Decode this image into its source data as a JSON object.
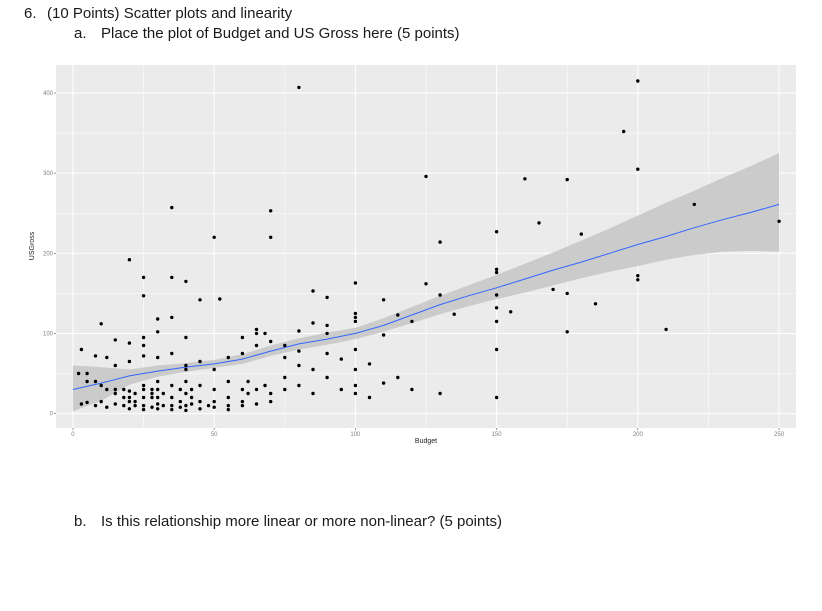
{
  "question": {
    "number": "6.",
    "title": "(10 Points) Scatter plots and linearity",
    "part_a": {
      "marker": "a.",
      "text": "Place the plot of Budget and US Gross here (5 points)"
    },
    "part_b": {
      "marker": "b.",
      "text": "Is this relationship more linear or more non-linear? (5 points)"
    }
  },
  "chart_data": {
    "type": "scatter",
    "xlabel": "Budget",
    "ylabel": "USGross",
    "xlim": [
      -6,
      256
    ],
    "ylim": [
      -18,
      435
    ],
    "x_ticks": [
      0,
      50,
      100,
      150,
      200,
      250
    ],
    "y_ticks": [
      0,
      100,
      200,
      300,
      400
    ],
    "grid": true,
    "colors": {
      "panel": "#ebebeb",
      "grid": "#ffffff",
      "points": "#000000",
      "smooth": "#3366ff",
      "band": "#c8c8c8"
    },
    "points": [
      [
        80,
        407
      ],
      [
        200,
        415
      ],
      [
        195,
        352
      ],
      [
        200,
        305
      ],
      [
        220,
        261
      ],
      [
        250,
        240
      ],
      [
        125,
        296
      ],
      [
        160,
        293
      ],
      [
        175,
        292
      ],
      [
        35,
        257
      ],
      [
        70,
        253
      ],
      [
        50,
        220
      ],
      [
        70,
        220
      ],
      [
        130,
        214
      ],
      [
        165,
        238
      ],
      [
        180,
        224
      ],
      [
        150,
        227
      ],
      [
        150,
        180
      ],
      [
        150,
        176
      ],
      [
        200,
        172
      ],
      [
        200,
        167
      ],
      [
        20,
        192
      ],
      [
        25,
        170
      ],
      [
        35,
        170
      ],
      [
        40,
        165
      ],
      [
        25,
        147
      ],
      [
        45,
        142
      ],
      [
        52,
        143
      ],
      [
        85,
        153
      ],
      [
        90,
        145
      ],
      [
        100,
        163
      ],
      [
        110,
        142
      ],
      [
        125,
        162
      ],
      [
        130,
        148
      ],
      [
        135,
        124
      ],
      [
        150,
        148
      ],
      [
        150,
        132
      ],
      [
        150,
        115
      ],
      [
        155,
        127
      ],
      [
        170,
        155
      ],
      [
        175,
        150
      ],
      [
        185,
        137
      ],
      [
        210,
        105
      ],
      [
        175,
        102
      ],
      [
        30,
        118
      ],
      [
        35,
        120
      ],
      [
        10,
        112
      ],
      [
        15,
        92
      ],
      [
        20,
        88
      ],
      [
        25,
        95
      ],
      [
        30,
        102
      ],
      [
        40,
        95
      ],
      [
        60,
        95
      ],
      [
        65,
        100
      ],
      [
        65,
        105
      ],
      [
        68,
        100
      ],
      [
        75,
        85
      ],
      [
        80,
        78
      ],
      [
        80,
        103
      ],
      [
        85,
        113
      ],
      [
        90,
        110
      ],
      [
        90,
        100
      ],
      [
        100,
        125
      ],
      [
        100,
        120
      ],
      [
        100,
        115
      ],
      [
        110,
        98
      ],
      [
        115,
        123
      ],
      [
        120,
        115
      ],
      [
        150,
        80
      ],
      [
        3,
        80
      ],
      [
        8,
        72
      ],
      [
        12,
        70
      ],
      [
        15,
        60
      ],
      [
        20,
        65
      ],
      [
        25,
        85
      ],
      [
        25,
        72
      ],
      [
        30,
        70
      ],
      [
        35,
        75
      ],
      [
        40,
        60
      ],
      [
        40,
        55
      ],
      [
        45,
        65
      ],
      [
        50,
        55
      ],
      [
        55,
        70
      ],
      [
        60,
        75
      ],
      [
        65,
        85
      ],
      [
        70,
        90
      ],
      [
        75,
        70
      ],
      [
        80,
        60
      ],
      [
        85,
        55
      ],
      [
        90,
        75
      ],
      [
        95,
        68
      ],
      [
        100,
        80
      ],
      [
        100,
        55
      ],
      [
        105,
        62
      ],
      [
        115,
        45
      ],
      [
        120,
        30
      ],
      [
        130,
        25
      ],
      [
        150,
        20
      ],
      [
        2,
        50
      ],
      [
        5,
        50
      ],
      [
        5,
        40
      ],
      [
        8,
        40
      ],
      [
        10,
        35
      ],
      [
        12,
        30
      ],
      [
        15,
        30
      ],
      [
        15,
        25
      ],
      [
        18,
        30
      ],
      [
        18,
        20
      ],
      [
        20,
        28
      ],
      [
        20,
        20
      ],
      [
        20,
        15
      ],
      [
        22,
        25
      ],
      [
        22,
        15
      ],
      [
        25,
        35
      ],
      [
        25,
        30
      ],
      [
        25,
        20
      ],
      [
        25,
        10
      ],
      [
        28,
        30
      ],
      [
        28,
        25
      ],
      [
        28,
        20
      ],
      [
        30,
        40
      ],
      [
        30,
        30
      ],
      [
        30,
        20
      ],
      [
        30,
        12
      ],
      [
        32,
        25
      ],
      [
        35,
        35
      ],
      [
        35,
        20
      ],
      [
        35,
        10
      ],
      [
        38,
        30
      ],
      [
        38,
        15
      ],
      [
        40,
        40
      ],
      [
        40,
        25
      ],
      [
        40,
        10
      ],
      [
        42,
        30
      ],
      [
        42,
        20
      ],
      [
        45,
        35
      ],
      [
        45,
        15
      ],
      [
        48,
        10
      ],
      [
        50,
        30
      ],
      [
        50,
        15
      ],
      [
        55,
        40
      ],
      [
        55,
        20
      ],
      [
        55,
        10
      ],
      [
        60,
        30
      ],
      [
        60,
        15
      ],
      [
        62,
        40
      ],
      [
        62,
        25
      ],
      [
        65,
        30
      ],
      [
        68,
        35
      ],
      [
        70,
        25
      ],
      [
        70,
        15
      ],
      [
        75,
        45
      ],
      [
        75,
        30
      ],
      [
        80,
        35
      ],
      [
        85,
        25
      ],
      [
        90,
        45
      ],
      [
        95,
        30
      ],
      [
        100,
        35
      ],
      [
        100,
        25
      ],
      [
        105,
        20
      ],
      [
        110,
        38
      ],
      [
        3,
        12
      ],
      [
        5,
        14
      ],
      [
        8,
        10
      ],
      [
        10,
        15
      ],
      [
        12,
        8
      ],
      [
        15,
        12
      ],
      [
        18,
        10
      ],
      [
        20,
        6
      ],
      [
        22,
        10
      ],
      [
        25,
        5
      ],
      [
        28,
        8
      ],
      [
        30,
        6
      ],
      [
        32,
        10
      ],
      [
        35,
        5
      ],
      [
        38,
        8
      ],
      [
        40,
        4
      ],
      [
        42,
        12
      ],
      [
        45,
        6
      ],
      [
        50,
        8
      ],
      [
        55,
        5
      ],
      [
        60,
        10
      ],
      [
        65,
        12
      ]
    ],
    "smooth_line": [
      [
        0,
        30
      ],
      [
        10,
        38
      ],
      [
        20,
        47
      ],
      [
        30,
        53
      ],
      [
        40,
        58
      ],
      [
        50,
        62
      ],
      [
        60,
        68
      ],
      [
        70,
        78
      ],
      [
        80,
        87
      ],
      [
        90,
        93
      ],
      [
        100,
        100
      ],
      [
        110,
        110
      ],
      [
        120,
        123
      ],
      [
        130,
        136
      ],
      [
        140,
        147
      ],
      [
        150,
        157
      ],
      [
        160,
        168
      ],
      [
        170,
        179
      ],
      [
        180,
        189
      ],
      [
        190,
        200
      ],
      [
        200,
        211
      ],
      [
        210,
        221
      ],
      [
        220,
        232
      ],
      [
        230,
        242
      ],
      [
        240,
        251
      ],
      [
        250,
        261
      ]
    ],
    "band_upper": [
      [
        0,
        60
      ],
      [
        10,
        58
      ],
      [
        20,
        55
      ],
      [
        30,
        60
      ],
      [
        40,
        63
      ],
      [
        50,
        67
      ],
      [
        60,
        74
      ],
      [
        70,
        85
      ],
      [
        80,
        94
      ],
      [
        90,
        101
      ],
      [
        100,
        107
      ],
      [
        110,
        119
      ],
      [
        120,
        133
      ],
      [
        130,
        147
      ],
      [
        140,
        160
      ],
      [
        150,
        173
      ],
      [
        160,
        187
      ],
      [
        170,
        201
      ],
      [
        180,
        216
      ],
      [
        190,
        231
      ],
      [
        200,
        247
      ],
      [
        210,
        263
      ],
      [
        220,
        278
      ],
      [
        230,
        294
      ],
      [
        240,
        309
      ],
      [
        250,
        325
      ]
    ],
    "band_lower": [
      [
        0,
        3
      ],
      [
        10,
        16
      ],
      [
        20,
        36
      ],
      [
        30,
        46
      ],
      [
        40,
        52
      ],
      [
        50,
        57
      ],
      [
        60,
        62
      ],
      [
        70,
        72
      ],
      [
        80,
        80
      ],
      [
        90,
        86
      ],
      [
        100,
        93
      ],
      [
        110,
        102
      ],
      [
        120,
        113
      ],
      [
        130,
        124
      ],
      [
        140,
        134
      ],
      [
        150,
        143
      ],
      [
        160,
        151
      ],
      [
        170,
        160
      ],
      [
        180,
        169
      ],
      [
        190,
        177
      ],
      [
        200,
        184
      ],
      [
        210,
        192
      ],
      [
        220,
        198
      ],
      [
        230,
        202
      ],
      [
        240,
        203
      ],
      [
        250,
        202
      ]
    ]
  }
}
